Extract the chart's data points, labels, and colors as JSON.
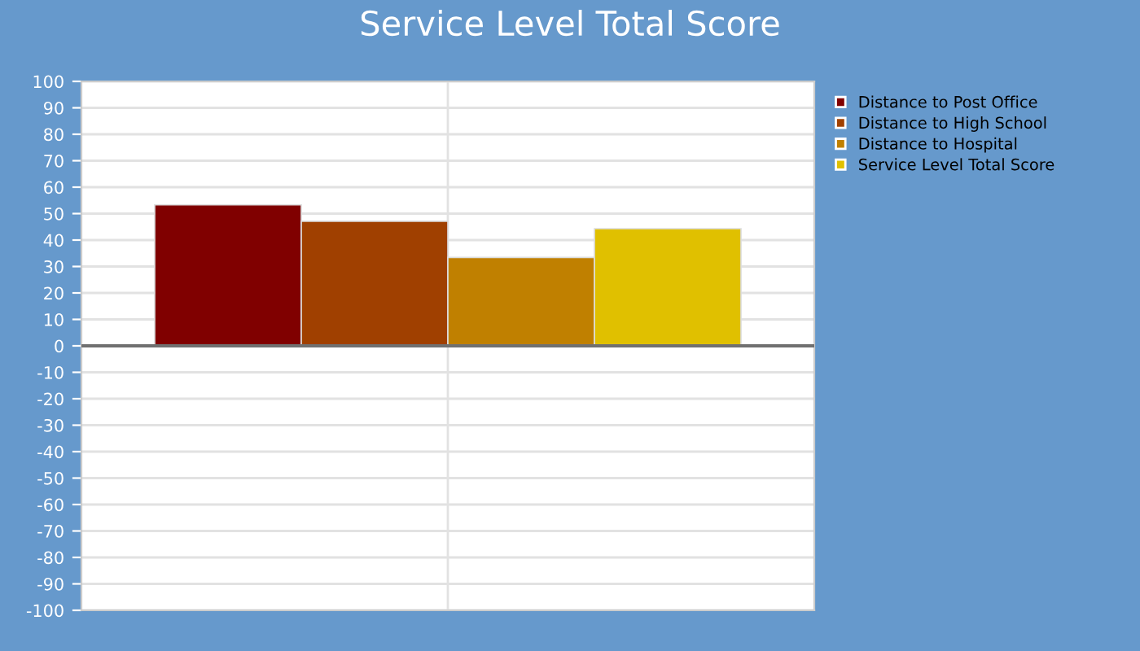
{
  "chart_data": {
    "type": "bar",
    "title": "Service Level Total Score",
    "categories": [
      null
    ],
    "series": [
      {
        "name": "Distance to Post Office",
        "color": "#800000",
        "values": [
          53.3
        ]
      },
      {
        "name": "Distance to High School",
        "color": "#a04000",
        "values": [
          47.1
        ]
      },
      {
        "name": "Distance to Hospital",
        "color": "#c08000",
        "values": [
          33.4
        ]
      },
      {
        "name": "Service Level Total Score",
        "color": "#e0c000",
        "values": [
          44.3
        ]
      }
    ],
    "ylim": [
      -100,
      100
    ],
    "yticks": [
      -100,
      -90,
      -80,
      -70,
      -60,
      -50,
      -40,
      -30,
      -20,
      -10,
      0,
      10,
      20,
      30,
      40,
      50,
      60,
      70,
      80,
      90,
      100
    ],
    "ref_lines": [
      {
        "axis": "y",
        "value": 0,
        "color": "#707070"
      }
    ],
    "grid": true,
    "legend": "top right"
  }
}
